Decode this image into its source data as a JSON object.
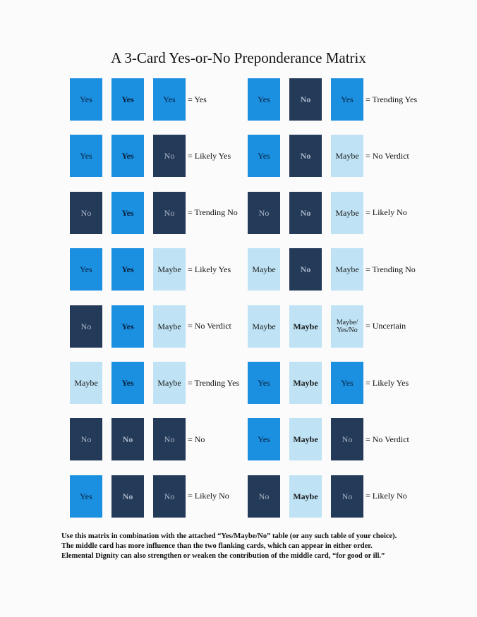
{
  "title": "A 3-Card Yes-or-No Preponderance Matrix",
  "colors": {
    "yes": "#1b8fe0",
    "no": "#243a59",
    "maybe": "#bfe3f5"
  },
  "rows": [
    {
      "left": {
        "cards": [
          {
            "label": "Yes",
            "type": "yes"
          },
          {
            "label": "Yes",
            "type": "yes",
            "bold": true
          },
          {
            "label": "Yes",
            "type": "yes"
          }
        ],
        "result": "= Yes"
      },
      "right": {
        "cards": [
          {
            "label": "Yes",
            "type": "yes"
          },
          {
            "label": "No",
            "type": "no",
            "bold": true
          },
          {
            "label": "Yes",
            "type": "yes"
          }
        ],
        "result": "= Trending Yes"
      }
    },
    {
      "left": {
        "cards": [
          {
            "label": "Yes",
            "type": "yes"
          },
          {
            "label": "Yes",
            "type": "yes",
            "bold": true
          },
          {
            "label": "No",
            "type": "no"
          }
        ],
        "result": "= Likely Yes"
      },
      "right": {
        "cards": [
          {
            "label": "Yes",
            "type": "yes"
          },
          {
            "label": "No",
            "type": "no",
            "bold": true
          },
          {
            "label": "Maybe",
            "type": "maybe"
          }
        ],
        "result": "= No Verdict"
      }
    },
    {
      "left": {
        "cards": [
          {
            "label": "No",
            "type": "no"
          },
          {
            "label": "Yes",
            "type": "yes",
            "bold": true
          },
          {
            "label": "No",
            "type": "no"
          }
        ],
        "result": "= Trending No"
      },
      "right": {
        "cards": [
          {
            "label": "No",
            "type": "no"
          },
          {
            "label": "No",
            "type": "no",
            "bold": true
          },
          {
            "label": "Maybe",
            "type": "maybe"
          }
        ],
        "result": "= Likely No"
      }
    },
    {
      "left": {
        "cards": [
          {
            "label": "Yes",
            "type": "yes"
          },
          {
            "label": "Yes",
            "type": "yes",
            "bold": true
          },
          {
            "label": "Maybe",
            "type": "maybe"
          }
        ],
        "result": "= Likely Yes"
      },
      "right": {
        "cards": [
          {
            "label": "Maybe",
            "type": "maybe"
          },
          {
            "label": "No",
            "type": "no",
            "bold": true
          },
          {
            "label": "Maybe",
            "type": "maybe"
          }
        ],
        "result": "= Trending No"
      }
    },
    {
      "left": {
        "cards": [
          {
            "label": "No",
            "type": "no"
          },
          {
            "label": "Yes",
            "type": "yes",
            "bold": true
          },
          {
            "label": "Maybe",
            "type": "maybe"
          }
        ],
        "result": "= No Verdict"
      },
      "right": {
        "cards": [
          {
            "label": "Maybe",
            "type": "maybe"
          },
          {
            "label": "Maybe",
            "type": "maybe",
            "bold": true
          },
          {
            "label": "Maybe/ Yes/No",
            "type": "maybe",
            "small": true
          }
        ],
        "result": "= Uncertain"
      }
    },
    {
      "left": {
        "cards": [
          {
            "label": "Maybe",
            "type": "maybe"
          },
          {
            "label": "Yes",
            "type": "yes",
            "bold": true
          },
          {
            "label": "Maybe",
            "type": "maybe"
          }
        ],
        "result": "= Trending Yes"
      },
      "right": {
        "cards": [
          {
            "label": "Yes",
            "type": "yes"
          },
          {
            "label": "Maybe",
            "type": "maybe",
            "bold": true
          },
          {
            "label": "Yes",
            "type": "yes"
          }
        ],
        "result": "= Likely Yes"
      }
    },
    {
      "left": {
        "cards": [
          {
            "label": "No",
            "type": "no"
          },
          {
            "label": "No",
            "type": "no",
            "bold": true
          },
          {
            "label": "No",
            "type": "no"
          }
        ],
        "result": "= No"
      },
      "right": {
        "cards": [
          {
            "label": "Yes",
            "type": "yes"
          },
          {
            "label": "Maybe",
            "type": "maybe",
            "bold": true
          },
          {
            "label": "No",
            "type": "no"
          }
        ],
        "result": "= No Verdict"
      }
    },
    {
      "left": {
        "cards": [
          {
            "label": "Yes",
            "type": "yes"
          },
          {
            "label": "No",
            "type": "no",
            "bold": true
          },
          {
            "label": "No",
            "type": "no"
          }
        ],
        "result": "= Likely No"
      },
      "right": {
        "cards": [
          {
            "label": "No",
            "type": "no"
          },
          {
            "label": "Maybe",
            "type": "maybe",
            "bold": true
          },
          {
            "label": "No",
            "type": "no"
          }
        ],
        "result": "= Likely No"
      }
    }
  ],
  "footer": [
    "Use this matrix in combination with the attached “Yes/Maybe/No” table (or any such table of your choice).",
    "The middle card has more influence than the two flanking cards, which can appear in either order.",
    "Elemental Dignity can also strengthen or weaken the contribution of the middle card, “for good or ill.”"
  ]
}
